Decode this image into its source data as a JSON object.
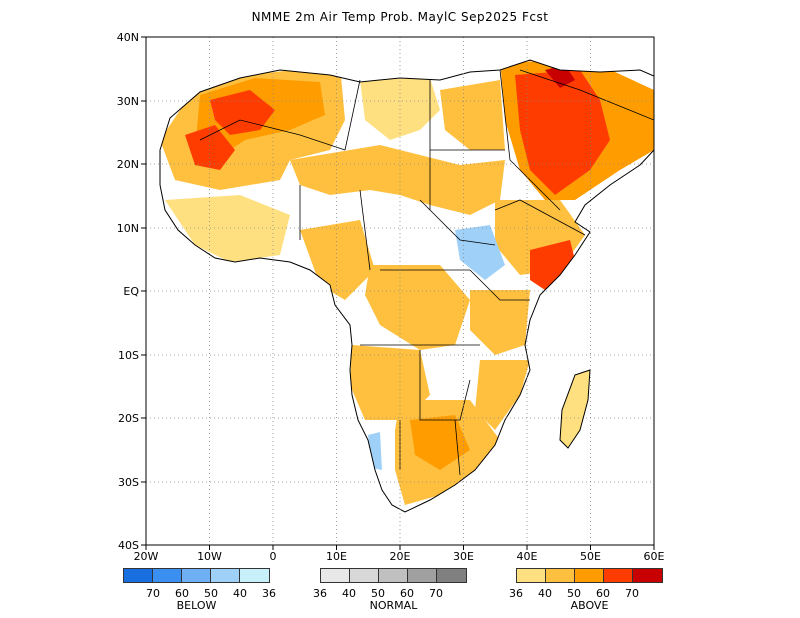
{
  "title": "NMME 2m Air Temp Prob. MaylC  Sep2025 Fcst",
  "map": {
    "lat_ticks": [
      "40N",
      "30N",
      "20N",
      "10N",
      "EQ",
      "10S",
      "20S",
      "30S",
      "40S"
    ],
    "lon_ticks": [
      "20W",
      "10W",
      "0",
      "10E",
      "20E",
      "30E",
      "40E",
      "50E",
      "60E"
    ],
    "grid": "dotted"
  },
  "legend": {
    "below": {
      "label": "BELOW",
      "colors": [
        "#1a6fe0",
        "#3a8ff0",
        "#6fb0f5",
        "#9fd0f8",
        "#c8f0fa"
      ],
      "numbers": [
        "70",
        "60",
        "50",
        "40",
        "36"
      ]
    },
    "normal": {
      "label": "NORMAL",
      "colors": [
        "#e8e8e8",
        "#d8d8d8",
        "#c0c0c0",
        "#a0a0a0",
        "#808080"
      ],
      "numbers": [
        "36",
        "40",
        "50",
        "60",
        "70"
      ]
    },
    "above": {
      "label": "ABOVE",
      "colors": [
        "#ffe080",
        "#ffc040",
        "#ff9d00",
        "#ff3c00",
        "#c80000"
      ],
      "numbers": [
        "36",
        "40",
        "50",
        "60",
        "70"
      ]
    }
  }
}
